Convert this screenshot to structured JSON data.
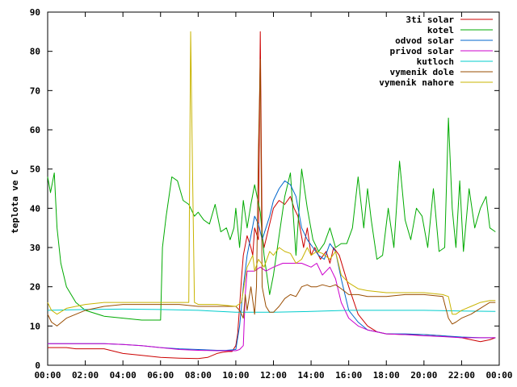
{
  "chart_data": {
    "type": "line",
    "title": "",
    "xlabel": "",
    "ylabel": "teplota ve C",
    "ylim": [
      0,
      90
    ],
    "yticks": [
      0,
      10,
      20,
      30,
      40,
      50,
      60,
      70,
      80,
      90
    ],
    "xlim": [
      0,
      24
    ],
    "xticks": [
      "00:00",
      "02:00",
      "04:00",
      "06:00",
      "08:00",
      "10:00",
      "12:00",
      "14:00",
      "16:00",
      "18:00",
      "20:00",
      "22:00",
      "00:00"
    ],
    "grid": false,
    "legend_position": "top-right",
    "series": [
      {
        "name": "3ti solar",
        "color": "#cc0000",
        "x": [
          0,
          0.3,
          0.6,
          1.0,
          1.5,
          2.0,
          3.0,
          4.0,
          5.0,
          6.0,
          7.0,
          8.0,
          8.5,
          9.0,
          9.3,
          9.6,
          9.8,
          10.0,
          10.1,
          10.2,
          10.3,
          10.4,
          10.6,
          10.8,
          10.9,
          11.0,
          11.2,
          11.3,
          11.4,
          11.5,
          11.7,
          12.0,
          12.3,
          12.6,
          12.9,
          13.1,
          13.3,
          13.6,
          13.8,
          14.0,
          14.2,
          14.5,
          14.8,
          15.0,
          15.2,
          15.5,
          16.0,
          16.5,
          17.0,
          17.5,
          18.0,
          19.0,
          20.0,
          21.0,
          22.0,
          22.5,
          23.0,
          23.5,
          23.8
        ],
        "y": [
          4.5,
          4.5,
          4.5,
          4.5,
          4.2,
          4.2,
          4.2,
          3.0,
          2.5,
          2.0,
          1.8,
          1.7,
          2.0,
          3.0,
          3.3,
          3.5,
          3.5,
          5.0,
          8.0,
          15.0,
          22.0,
          28.0,
          33.0,
          30.0,
          28.0,
          35.0,
          32.0,
          85.0,
          33.0,
          30.0,
          34.0,
          40.0,
          42.0,
          41.0,
          43.0,
          40.0,
          38.0,
          30.0,
          35.0,
          28.0,
          30.0,
          27.0,
          29.0,
          26.0,
          30.0,
          28.0,
          20.0,
          13.0,
          10.0,
          8.5,
          8.0,
          7.8,
          7.8,
          7.5,
          7.0,
          6.5,
          6.0,
          6.5,
          7.0
        ]
      },
      {
        "name": "kotel",
        "color": "#00aa00",
        "x": [
          0,
          0.15,
          0.35,
          0.5,
          0.7,
          1.0,
          1.5,
          2.0,
          3.0,
          4.0,
          5.0,
          6.0,
          6.1,
          6.3,
          6.6,
          6.9,
          7.2,
          7.5,
          7.8,
          8.0,
          8.3,
          8.6,
          8.9,
          9.2,
          9.5,
          9.7,
          9.9,
          10.0,
          10.2,
          10.4,
          10.6,
          10.8,
          11.0,
          11.3,
          11.5,
          11.8,
          12.0,
          12.3,
          12.6,
          12.9,
          13.2,
          13.5,
          13.8,
          14.1,
          14.4,
          14.7,
          15.0,
          15.3,
          15.6,
          15.9,
          16.2,
          16.5,
          16.8,
          17.0,
          17.2,
          17.5,
          17.8,
          18.1,
          18.4,
          18.7,
          19.0,
          19.3,
          19.6,
          19.9,
          20.2,
          20.5,
          20.8,
          21.1,
          21.3,
          21.5,
          21.7,
          21.9,
          22.1,
          22.4,
          22.7,
          23.0,
          23.3,
          23.5,
          23.8
        ],
        "y": [
          48,
          44,
          49,
          35,
          26,
          20,
          16,
          14,
          12.5,
          12,
          11.5,
          11.5,
          30,
          38,
          48,
          47,
          42,
          41,
          38,
          39,
          37,
          36,
          41,
          34,
          35,
          32,
          35,
          40,
          30,
          42,
          35,
          41,
          46,
          39,
          28,
          18,
          23,
          33,
          43,
          49,
          28,
          50,
          40,
          32,
          29,
          31,
          35,
          30,
          31,
          31,
          35,
          48,
          35,
          45,
          37,
          27,
          28,
          40,
          30,
          52,
          37,
          32,
          40,
          38,
          30,
          45,
          29,
          30,
          63,
          40,
          30,
          47,
          29,
          45,
          35,
          40,
          43,
          35,
          34
        ]
      },
      {
        "name": "odvod solar",
        "color": "#0066cc",
        "x": [
          0,
          1.0,
          2.0,
          3.0,
          4.0,
          5.0,
          6.0,
          7.0,
          8.0,
          9.0,
          9.5,
          10.0,
          10.2,
          10.4,
          10.6,
          10.8,
          11.0,
          11.2,
          11.4,
          11.6,
          11.8,
          12.0,
          12.3,
          12.6,
          12.9,
          13.2,
          13.5,
          13.8,
          14.1,
          14.4,
          14.7,
          15.0,
          15.3,
          15.6,
          16.0,
          16.5,
          17.0,
          17.5,
          18.0,
          19.0,
          20.0,
          21.0,
          22.0,
          23.0,
          23.8
        ],
        "y": [
          5.5,
          5.5,
          5.5,
          5.5,
          5.3,
          5.0,
          4.5,
          4.2,
          4.0,
          3.8,
          3.8,
          4.0,
          10,
          20,
          28,
          33,
          38,
          36,
          32,
          35,
          38,
          42,
          45,
          47,
          46,
          43,
          35,
          32,
          30,
          28,
          27,
          31,
          29,
          22,
          14,
          11,
          9,
          8.5,
          8.0,
          8.0,
          7.8,
          7.5,
          7.2,
          7.0,
          7.0
        ]
      },
      {
        "name": "privod solar",
        "color": "#cc00cc",
        "x": [
          0,
          1.0,
          2.0,
          3.0,
          4.0,
          5.0,
          6.0,
          7.0,
          8.0,
          9.0,
          9.5,
          10.0,
          10.2,
          10.4,
          10.5,
          10.6,
          10.8,
          11.0,
          11.3,
          11.6,
          12.0,
          12.5,
          13.0,
          13.5,
          14.0,
          14.3,
          14.6,
          15.0,
          15.3,
          15.6,
          16.0,
          16.5,
          17.0,
          17.5,
          18.0,
          19.0,
          20.0,
          21.0,
          22.0,
          23.0,
          23.8
        ],
        "y": [
          5.5,
          5.5,
          5.5,
          5.5,
          5.3,
          5.0,
          4.5,
          4.0,
          3.8,
          3.7,
          3.7,
          3.7,
          4.0,
          5.0,
          18.0,
          24.0,
          24.0,
          24.0,
          25.0,
          24.0,
          25.0,
          26.0,
          26.0,
          26.0,
          25.0,
          26.0,
          23.0,
          25.0,
          22.0,
          16.0,
          12.0,
          10.0,
          9.0,
          8.5,
          8.0,
          7.8,
          7.5,
          7.3,
          7.0,
          7.0,
          7.0
        ]
      },
      {
        "name": "kutloch",
        "color": "#00cccc",
        "x": [
          0,
          2.0,
          4.0,
          6.0,
          8.0,
          10.0,
          12.0,
          14.0,
          16.0,
          18.0,
          20.0,
          22.0,
          23.8
        ],
        "y": [
          14.0,
          14.2,
          14.3,
          14.2,
          14.0,
          13.5,
          13.5,
          13.7,
          14.0,
          14.0,
          14.0,
          13.8,
          13.7
        ]
      },
      {
        "name": "vymenik dole",
        "color": "#994c00",
        "x": [
          0,
          0.2,
          0.5,
          1.0,
          2.0,
          3.0,
          4.0,
          5.0,
          6.0,
          7.0,
          8.0,
          9.0,
          10.0,
          10.2,
          10.4,
          10.5,
          10.6,
          10.8,
          11.0,
          11.1,
          11.2,
          11.3,
          11.4,
          11.6,
          11.8,
          12.0,
          12.3,
          12.6,
          12.9,
          13.2,
          13.5,
          13.8,
          14.0,
          14.3,
          14.6,
          15.0,
          15.3,
          15.6,
          16.0,
          16.5,
          17.0,
          18.0,
          19.0,
          20.0,
          21.0,
          21.3,
          21.5,
          21.7,
          22.0,
          22.5,
          23.0,
          23.5,
          23.8
        ],
        "y": [
          13.0,
          11.0,
          10.0,
          12.0,
          14.0,
          15.0,
          15.5,
          15.5,
          15.5,
          15.5,
          15.0,
          15.0,
          15.0,
          14.0,
          12.0,
          18.0,
          14.0,
          20.0,
          13.0,
          20.0,
          55.0,
          78.0,
          20.0,
          15.0,
          13.5,
          13.5,
          15.0,
          17.0,
          18.0,
          17.5,
          20.0,
          20.5,
          20.0,
          20.0,
          20.5,
          20.0,
          20.5,
          19.5,
          18.0,
          18.0,
          17.5,
          17.5,
          18.0,
          18.0,
          17.5,
          12.0,
          10.5,
          11.0,
          12.0,
          13.0,
          14.5,
          16.0,
          16.0
        ]
      },
      {
        "name": "vymenik nahore",
        "color": "#c8b400",
        "x": [
          0,
          0.2,
          0.5,
          1.0,
          2.0,
          3.0,
          4.0,
          5.0,
          6.0,
          7.0,
          7.5,
          7.6,
          7.7,
          7.8,
          8.0,
          9.0,
          10.0,
          10.3,
          10.6,
          10.9,
          11.0,
          11.2,
          11.5,
          11.8,
          12.0,
          12.3,
          12.6,
          12.9,
          13.2,
          13.5,
          13.8,
          14.0,
          14.3,
          14.6,
          15.0,
          15.3,
          15.6,
          16.0,
          16.5,
          17.0,
          18.0,
          19.0,
          20.0,
          21.0,
          21.3,
          21.5,
          21.7,
          22.0,
          22.5,
          23.0,
          23.5,
          23.8
        ],
        "y": [
          16.0,
          14.0,
          13.0,
          14.5,
          15.5,
          16.0,
          16.0,
          16.0,
          16.0,
          16.0,
          16.0,
          85.0,
          50.0,
          16.0,
          15.5,
          15.5,
          15.0,
          16.0,
          25.0,
          28.0,
          24.0,
          27.0,
          25.0,
          29.0,
          28.0,
          30.0,
          29.0,
          28.5,
          26.0,
          27.0,
          30.0,
          28.0,
          29.0,
          28.5,
          27.0,
          29.0,
          23.0,
          21.0,
          19.5,
          19.0,
          18.5,
          18.5,
          18.5,
          18.0,
          17.5,
          13.0,
          13.0,
          14.0,
          15.0,
          16.0,
          16.5,
          16.5
        ]
      }
    ]
  }
}
